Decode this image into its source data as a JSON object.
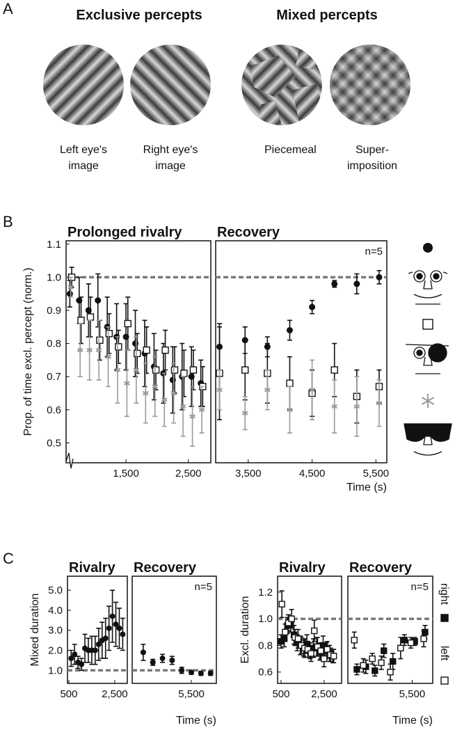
{
  "panel_labels": [
    "A",
    "B",
    "C"
  ],
  "panel_a": {
    "headings": [
      "Exclusive percepts",
      "Mixed percepts"
    ],
    "captions": [
      [
        "Left eye's",
        "image"
      ],
      [
        "Right eye's",
        "image"
      ],
      [
        "Piecemeal"
      ],
      [
        "Super-",
        "imposition"
      ]
    ]
  },
  "chart_data": [
    {
      "type": "scatter",
      "title": "Prolonged rivalry",
      "ylabel": "Prop. of time excl. percept (norm.)",
      "xlim": [
        540,
        2860
      ],
      "ylim": [
        0.44,
        1.11
      ],
      "xticks": [
        {
          "value": 1500,
          "label": "1,500"
        },
        {
          "value": 2500,
          "label": "2,500"
        }
      ],
      "yticks": [
        0.5,
        0.6,
        0.7,
        0.8,
        0.9,
        {
          "value": 1,
          "label": "1.0"
        },
        1.1
      ],
      "hline": 1,
      "hline_color": "#7a7a7a",
      "axis_break": true,
      "series": [
        {
          "marker": "circle",
          "color": "#111111",
          "x": [
            600,
            750,
            900,
            1050,
            1200,
            1350,
            1500,
            1650,
            1800,
            1950,
            2100,
            2250,
            2400,
            2550,
            2700
          ],
          "values": [
            0.95,
            0.93,
            0.9,
            0.93,
            0.85,
            0.82,
            0.82,
            0.8,
            0.77,
            0.73,
            0.71,
            0.69,
            0.7,
            0.7,
            0.68
          ],
          "errors": [
            0.04,
            0.07,
            0.08,
            0.08,
            0.09,
            0.1,
            0.1,
            0.1,
            0.1,
            0.1,
            0.09,
            0.1,
            0.1,
            0.09,
            0.07
          ]
        },
        {
          "marker": "open-square",
          "color": "#111111",
          "x": [
            630,
            780,
            930,
            1080,
            1230,
            1380,
            1530,
            1680,
            1830,
            1980,
            2130,
            2280,
            2430,
            2580,
            2730
          ],
          "values": [
            1.0,
            0.87,
            0.88,
            0.81,
            0.83,
            0.79,
            0.86,
            0.77,
            0.78,
            0.72,
            0.78,
            0.72,
            0.71,
            0.72,
            0.67
          ],
          "errors": [
            0.03,
            0.07,
            0.06,
            0.06,
            0.06,
            0.05,
            0.08,
            0.06,
            0.07,
            0.06,
            0.06,
            0.07,
            0.07,
            0.06,
            0.06
          ]
        },
        {
          "marker": "asterisk",
          "color": "#9a9a9a",
          "x": [
            615,
            765,
            915,
            1065,
            1215,
            1365,
            1515,
            1665,
            1815,
            1965,
            2115,
            2265,
            2415,
            2565,
            2715
          ],
          "values": [
            0.97,
            0.78,
            0.78,
            0.78,
            0.76,
            0.72,
            0.68,
            0.72,
            0.65,
            0.67,
            0.63,
            0.65,
            0.61,
            0.58,
            0.6
          ],
          "errors": [
            0.03,
            0.08,
            0.09,
            0.09,
            0.09,
            0.1,
            0.1,
            0.1,
            0.09,
            0.09,
            0.08,
            0.09,
            0.09,
            0.09,
            0.07
          ]
        }
      ]
    },
    {
      "type": "scatter",
      "title": "Recovery",
      "xlabel": "Time (s)",
      "annotation": "n=5",
      "xlim": [
        2990,
        5670
      ],
      "ylim": [
        0.44,
        1.11
      ],
      "xticks": [
        {
          "value": 3500,
          "label": "3,500"
        },
        {
          "value": 4500,
          "label": "4,500"
        },
        {
          "value": 5500,
          "label": "5,500"
        }
      ],
      "hline": 1,
      "hline_color": "#7a7a7a",
      "series": [
        {
          "marker": "circle",
          "color": "#111111",
          "x": [
            3050,
            3450,
            3800,
            4150,
            4500,
            4850,
            5200,
            5550
          ],
          "values": [
            0.79,
            0.81,
            0.79,
            0.84,
            0.91,
            0.98,
            0.98,
            1.0
          ],
          "errors": [
            0.07,
            0.04,
            0.03,
            0.03,
            0.02,
            0.01,
            0.03,
            0.02
          ]
        },
        {
          "marker": "open-square",
          "color": "#111111",
          "x": [
            3050,
            3450,
            3800,
            4150,
            4500,
            4850,
            5200,
            5550
          ],
          "values": [
            0.71,
            0.72,
            0.71,
            0.68,
            0.65,
            0.72,
            0.64,
            0.67
          ],
          "errors": [
            0.14,
            0.09,
            0.09,
            0.08,
            0.07,
            0.08,
            0.08,
            0.05
          ]
        },
        {
          "marker": "asterisk",
          "color": "#9a9a9a",
          "x": [
            3050,
            3450,
            3800,
            4150,
            4500,
            4850,
            5200,
            5550
          ],
          "values": [
            0.66,
            0.59,
            0.66,
            0.6,
            0.66,
            0.61,
            0.61,
            0.62
          ],
          "errors": [
            0.06,
            0.05,
            0.06,
            0.07,
            0.09,
            0.08,
            0.09,
            0.07
          ]
        }
      ]
    },
    {
      "type": "scatter",
      "title": "Rivalry",
      "ylabel": "Mixed duration",
      "xlim": [
        440,
        3050
      ],
      "ylim": [
        0.35,
        5.7
      ],
      "xticks": [
        500,
        {
          "value": 2500,
          "label": "2,500"
        }
      ],
      "yticks": [
        {
          "value": 1,
          "label": "1.0"
        },
        {
          "value": 2,
          "label": "2.0"
        },
        {
          "value": 3,
          "label": "3.0"
        },
        {
          "value": 4,
          "label": "4.0"
        },
        {
          "value": 5,
          "label": "5.0"
        }
      ],
      "hline": 1,
      "hline_color": "#7a7a7a",
      "series": [
        {
          "marker": "circle",
          "color": "#111111",
          "x": [
            600,
            750,
            900,
            1050,
            1200,
            1350,
            1500,
            1650,
            1800,
            1950,
            2100,
            2250,
            2400,
            2550,
            2700,
            2850
          ],
          "values": [
            1.6,
            1.8,
            1.4,
            1.3,
            2.1,
            2.0,
            2.0,
            2.0,
            2.3,
            2.5,
            2.6,
            3.1,
            3.7,
            3.3,
            3.1,
            2.8
          ],
          "errors": [
            0.4,
            0.5,
            0.3,
            0.3,
            0.7,
            0.6,
            0.7,
            0.7,
            0.8,
            0.9,
            1.0,
            1.1,
            1.3,
            1.1,
            1.0,
            0.8
          ]
        }
      ]
    },
    {
      "type": "scatter",
      "title": "Recovery",
      "xlabel": "Time (s)",
      "annotation": "n=5",
      "xlim": [
        3040,
        6540
      ],
      "ylim": [
        0.35,
        5.7
      ],
      "xticks": [
        {
          "value": 5500,
          "label": "5,500"
        }
      ],
      "hline": 1,
      "hline_color": "#7a7a7a",
      "series": [
        {
          "marker": "circle",
          "color": "#111111",
          "x": [
            3500,
            3900,
            4300,
            4700,
            5100,
            5500,
            5900,
            6300
          ],
          "values": [
            1.9,
            1.4,
            1.6,
            1.5,
            1.0,
            0.9,
            0.85,
            0.85
          ],
          "errors": [
            0.4,
            0.15,
            0.2,
            0.2,
            0.15,
            0.1,
            0.1,
            0.1
          ]
        }
      ]
    },
    {
      "type": "scatter",
      "title": "Rivalry",
      "ylabel": "Excl. duration",
      "legend": true,
      "xlim": [
        340,
        3306
      ],
      "ylim": [
        0.515,
        1.32
      ],
      "xticks": [
        500,
        {
          "value": 2500,
          "label": "2,500"
        }
      ],
      "yticks": [
        0.6,
        0.8,
        {
          "value": 1,
          "label": "1.0"
        },
        1.2
      ],
      "hline": 1,
      "hline_color": "#7a7a7a",
      "series": [
        {
          "name": "right",
          "marker": "filled-square",
          "color": "#111111",
          "x": [
            500,
            650,
            800,
            950,
            1100,
            1250,
            1400,
            1550,
            1700,
            1850,
            2000,
            2150,
            2300,
            2450,
            2600,
            2750,
            2900
          ],
          "values": [
            0.83,
            0.85,
            0.95,
            0.96,
            0.88,
            0.82,
            0.8,
            0.78,
            0.81,
            0.76,
            0.78,
            0.79,
            0.75,
            0.8,
            0.76,
            0.74,
            0.72
          ],
          "errors": [
            0.05,
            0.06,
            0.06,
            0.06,
            0.07,
            0.06,
            0.07,
            0.06,
            0.07,
            0.06,
            0.07,
            0.07,
            0.06,
            0.07,
            0.06,
            0.06,
            0.05
          ]
        },
        {
          "name": "left",
          "marker": "open-square",
          "color": "#111111",
          "x": [
            540,
            690,
            840,
            990,
            1140,
            1290,
            1440,
            1590,
            1740,
            1890,
            2040,
            2190,
            2340,
            2490,
            2640,
            2790,
            2940
          ],
          "values": [
            1.11,
            0.9,
            0.97,
            1.0,
            0.86,
            0.85,
            0.8,
            0.78,
            0.77,
            0.74,
            0.91,
            0.79,
            0.76,
            0.7,
            0.77,
            0.73,
            0.72
          ],
          "errors": [
            0.1,
            0.06,
            0.06,
            0.07,
            0.06,
            0.07,
            0.06,
            0.07,
            0.06,
            0.06,
            0.08,
            0.07,
            0.06,
            0.06,
            0.06,
            0.05,
            0.05
          ]
        }
      ]
    },
    {
      "type": "scatter",
      "title": "Recovery",
      "xlabel": "Time (s)",
      "annotation": "n=5",
      "xlim": [
        3000,
        6300
      ],
      "ylim": [
        0.515,
        1.32
      ],
      "xticks": [
        {
          "value": 5500,
          "label": "5,500"
        }
      ],
      "hline": 1,
      "hline_color": "#7a7a7a",
      "series": [
        {
          "marker": "filled-square",
          "color": "#111111",
          "x": [
            3350,
            3700,
            4050,
            4400,
            4750,
            5200,
            5600,
            6000
          ],
          "values": [
            0.62,
            0.64,
            0.61,
            0.76,
            0.68,
            0.84,
            0.83,
            0.9
          ],
          "errors": [
            0.04,
            0.05,
            0.04,
            0.05,
            0.06,
            0.04,
            0.03,
            0.05
          ]
        },
        {
          "marker": "open-square",
          "color": "#111111",
          "x": [
            3250,
            3600,
            3950,
            4300,
            4650,
            5050,
            5450,
            5950
          ],
          "values": [
            0.84,
            0.65,
            0.7,
            0.67,
            0.6,
            0.78,
            0.82,
            0.85
          ],
          "errors": [
            0.06,
            0.05,
            0.04,
            0.05,
            0.06,
            0.08,
            0.04,
            0.06
          ]
        }
      ]
    }
  ]
}
